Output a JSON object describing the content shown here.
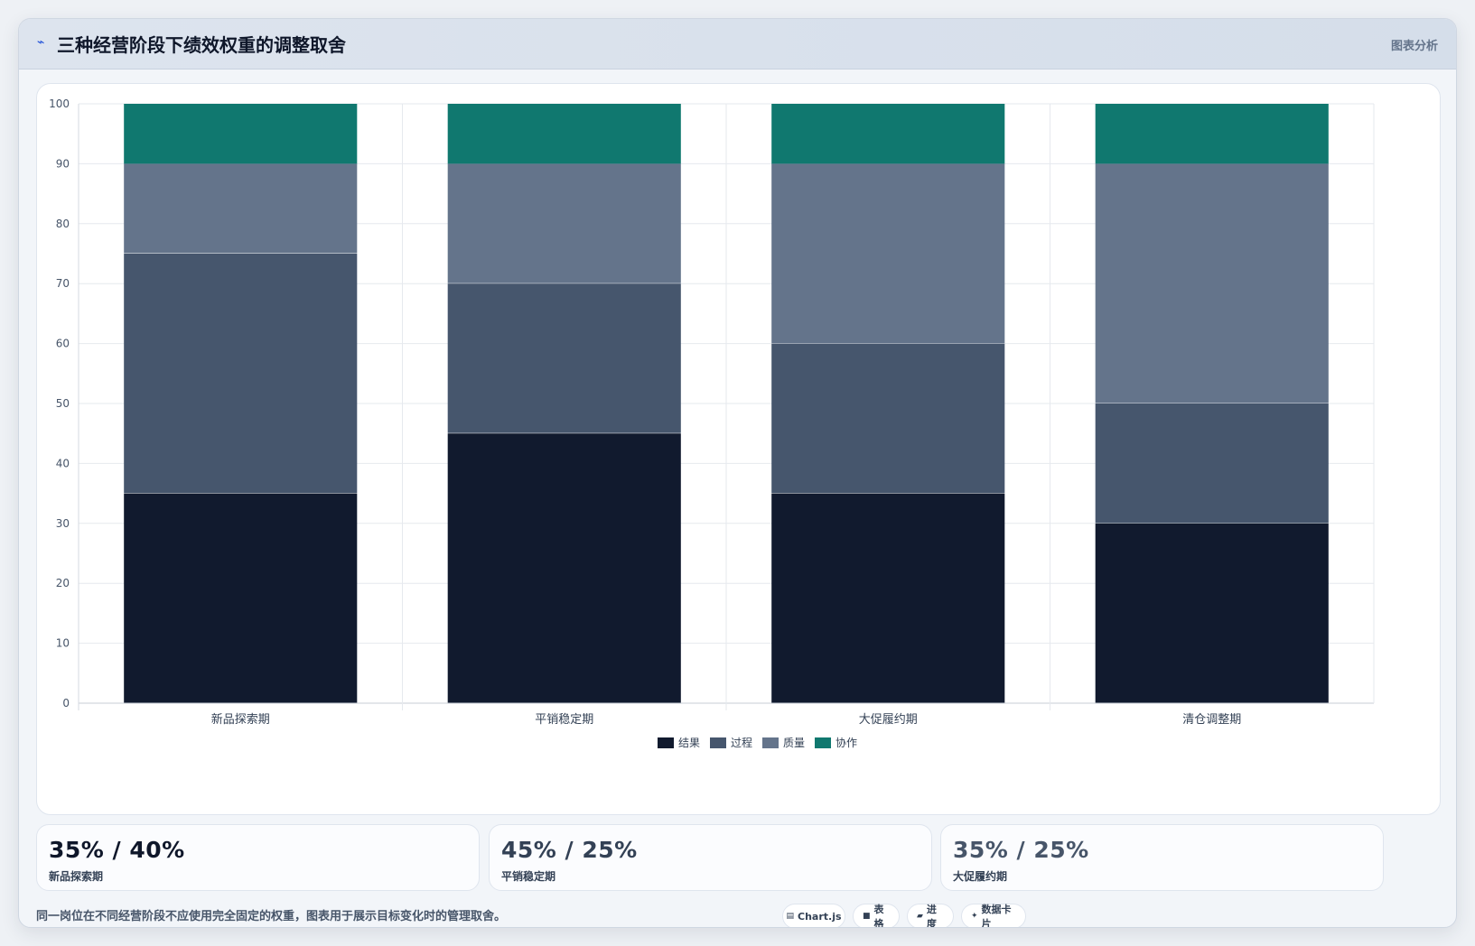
{
  "header": {
    "logo_icon": "pulse-icon",
    "title": "三种经营阶段下绩效权重的调整取舍",
    "tag": "图表分析"
  },
  "chart_data": {
    "type": "bar",
    "stacked": true,
    "categories": [
      "新品探索期",
      "平销稳定期",
      "大促履约期",
      "清仓调整期"
    ],
    "series": [
      {
        "name": "结果",
        "values": [
          35,
          45,
          35,
          30
        ],
        "color": "#111a2e"
      },
      {
        "name": "过程",
        "values": [
          40,
          25,
          25,
          20
        ],
        "color": "#46566d"
      },
      {
        "name": "质量",
        "values": [
          15,
          20,
          30,
          40
        ],
        "color": "#64748b"
      },
      {
        "name": "协作",
        "values": [
          10,
          10,
          10,
          10
        ],
        "color": "#10786f"
      }
    ],
    "ylim": [
      0,
      100
    ],
    "yticks": [
      0,
      10,
      20,
      30,
      40,
      50,
      60,
      70,
      80,
      90,
      100
    ],
    "grid": true,
    "legend_position": "bottom"
  },
  "stats": [
    {
      "value": "35% / 40%",
      "label": "新品探索期",
      "color": "#0f172a"
    },
    {
      "value": "45% / 25%",
      "label": "平销稳定期",
      "color": "#334155"
    },
    {
      "value": "35% / 25%",
      "label": "大促履约期",
      "color": "#475569"
    }
  ],
  "footer": {
    "note": "同一岗位在不同经营阶段不应使用完全固定的权重，图表用于展示目标变化时的管理取舍。",
    "chips": [
      {
        "icon": "chart-icon",
        "glyph": "▤",
        "label": "Chart.js"
      },
      {
        "icon": "table-icon",
        "glyph": "■",
        "label": "表格"
      },
      {
        "icon": "progress-icon",
        "glyph": "▰",
        "label": "进度"
      },
      {
        "icon": "card-icon",
        "glyph": "✦",
        "label": "数据卡片"
      }
    ]
  }
}
